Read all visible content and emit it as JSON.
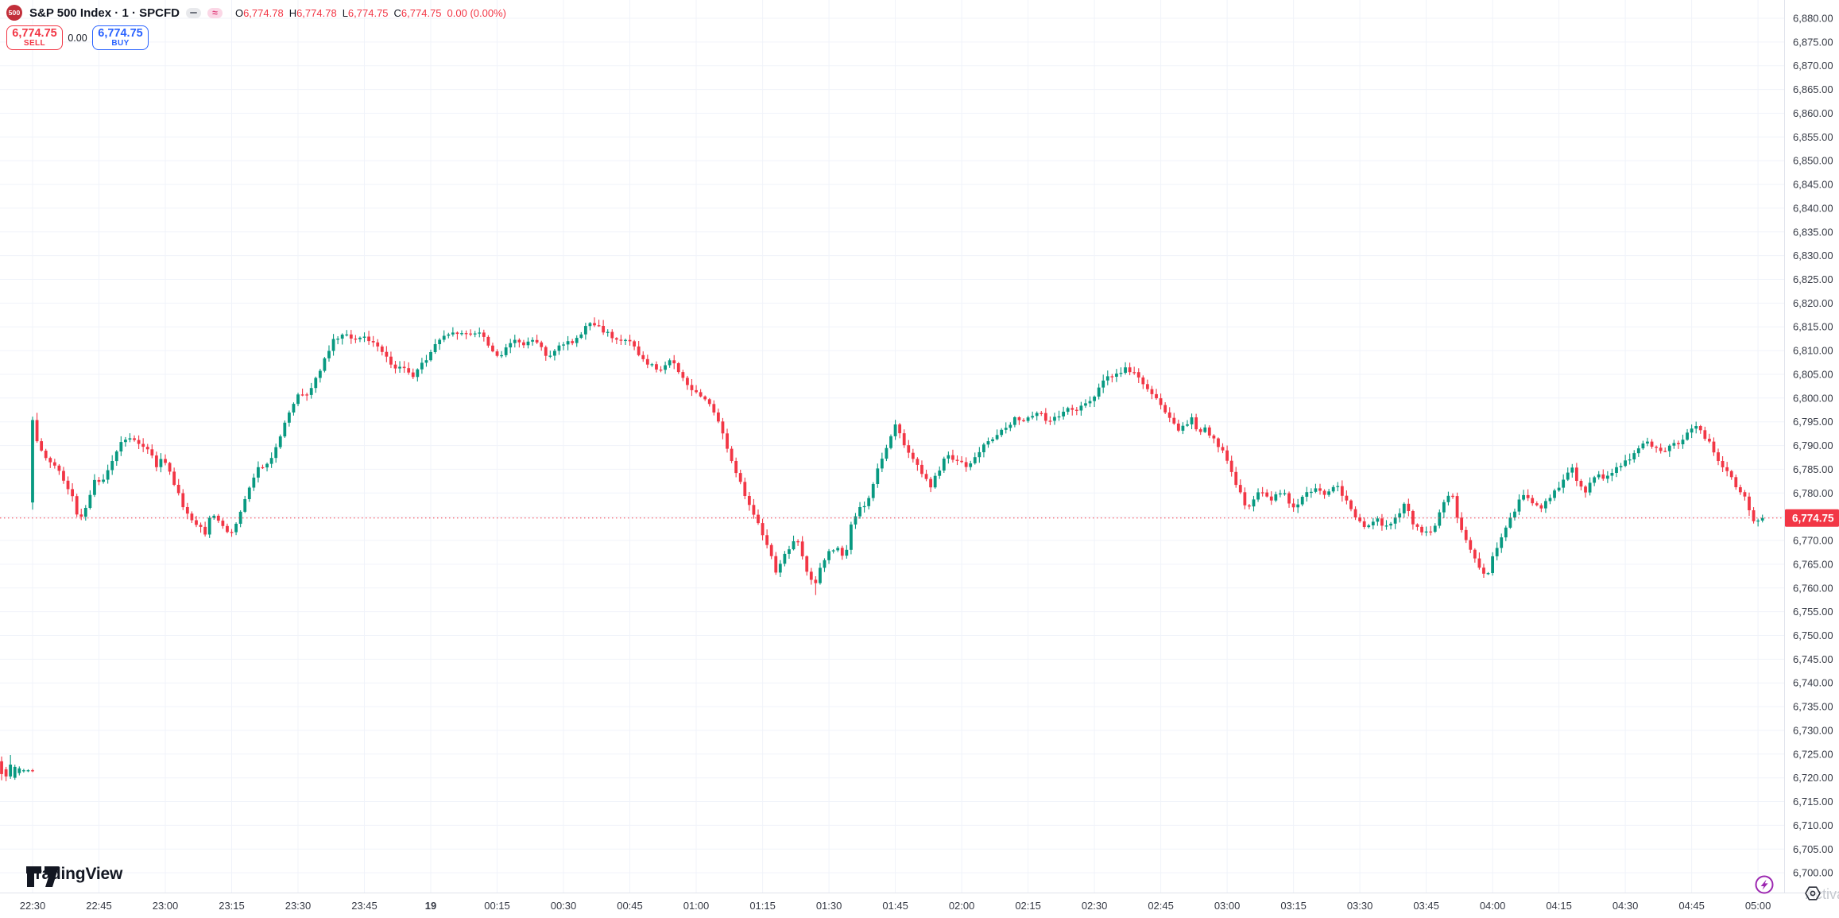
{
  "header": {
    "symbol_badge": "500",
    "title": "S&P 500 Index · 1 · SPCFD",
    "wave_symbol": "≈",
    "ohlc": {
      "open_label": "O",
      "open": "6,774.78",
      "high_label": "H",
      "high": "6,774.78",
      "low_label": "L",
      "low": "6,774.75",
      "close_label": "C",
      "close": "6,774.75",
      "change": "0.00",
      "change_pct": "(0.00%)"
    },
    "trade_panel": {
      "sell_price": "6,774.75",
      "sell_label": "SELL",
      "spread": "0.00",
      "buy_price": "6,774.75",
      "buy_label": "BUY"
    }
  },
  "watermark": {
    "logo_text": "TradingView"
  },
  "corner": {
    "clipped_text": "Activa"
  },
  "last_price": {
    "value": 6774.75,
    "label": "6,774.75"
  },
  "price_scale": {
    "min": 6700,
    "max": 6880,
    "step": 5
  },
  "time_scale": {
    "labels": [
      "22:30",
      "22:45",
      "23:00",
      "23:15",
      "23:30",
      "23:45",
      "19",
      "00:15",
      "00:30",
      "00:45",
      "01:00",
      "01:15",
      "01:30",
      "01:45",
      "02:00",
      "02:15",
      "02:30",
      "02:45",
      "03:00",
      "03:15",
      "03:30",
      "03:45",
      "04:00",
      "04:15",
      "04:30",
      "04:45",
      "05:00"
    ],
    "bold_label": "19"
  },
  "colors": {
    "up": "#089981",
    "down": "#f23645",
    "grid": "#f0f3fa",
    "axis_border": "#e0e3eb",
    "axis_text": "#363a45",
    "text": "#131722",
    "buy_blue": "#2962ff",
    "badge_red": "#c22f3a",
    "lightning_purple": "#9c27b0",
    "watermark_grey": "#c6c9cf"
  },
  "chart_data": {
    "type": "candlestick",
    "interval_minutes": 1,
    "session_start": "22:30",
    "session_end": "05:02",
    "session_open": 6778,
    "session_high": 6817,
    "session_low": 6758.5,
    "session_close": 6774.75,
    "current_price_line": 6774.75,
    "waypoints": [
      [
        0,
        6778
      ],
      [
        1,
        6795
      ],
      [
        2,
        6791
      ],
      [
        4,
        6787
      ],
      [
        6,
        6786
      ],
      [
        8,
        6783
      ],
      [
        10,
        6779
      ],
      [
        11.5,
        6773.5
      ],
      [
        13,
        6777
      ],
      [
        15,
        6783
      ],
      [
        16.5,
        6782
      ],
      [
        18,
        6785
      ],
      [
        20,
        6789
      ],
      [
        21.5,
        6791.5
      ],
      [
        23.5,
        6792
      ],
      [
        25,
        6790.5
      ],
      [
        27,
        6789.5
      ],
      [
        29,
        6785.5
      ],
      [
        30.5,
        6787.5
      ],
      [
        33,
        6782
      ],
      [
        35,
        6777.5
      ],
      [
        36.5,
        6775
      ],
      [
        38,
        6773.5
      ],
      [
        40,
        6771.5
      ],
      [
        41.5,
        6776
      ],
      [
        43,
        6774.5
      ],
      [
        45,
        6771.5
      ],
      [
        46.5,
        6772.5
      ],
      [
        48,
        6776.5
      ],
      [
        50,
        6781
      ],
      [
        52,
        6785.5
      ],
      [
        54,
        6786
      ],
      [
        56,
        6789.5
      ],
      [
        58,
        6794.5
      ],
      [
        60,
        6799
      ],
      [
        61.5,
        6801.5
      ],
      [
        63,
        6800.5
      ],
      [
        64.5,
        6803.5
      ],
      [
        66,
        6806
      ],
      [
        67.5,
        6809
      ],
      [
        69,
        6812
      ],
      [
        71,
        6813.5
      ],
      [
        73,
        6812.5
      ],
      [
        75,
        6813
      ],
      [
        77,
        6812
      ],
      [
        79,
        6810.5
      ],
      [
        81,
        6808.5
      ],
      [
        83,
        6806.5
      ],
      [
        85,
        6806
      ],
      [
        87,
        6804.5
      ],
      [
        88.5,
        6806.5
      ],
      [
        90,
        6808
      ],
      [
        92,
        6811
      ],
      [
        94,
        6813
      ],
      [
        96,
        6814
      ],
      [
        98,
        6813.5
      ],
      [
        100,
        6813
      ],
      [
        102,
        6814
      ],
      [
        103.5,
        6812
      ],
      [
        105,
        6809.5
      ],
      [
        106.5,
        6808
      ],
      [
        108,
        6810.5
      ],
      [
        110,
        6812.5
      ],
      [
        112,
        6811.5
      ],
      [
        114,
        6812.5
      ],
      [
        116,
        6810.5
      ],
      [
        117.5,
        6808
      ],
      [
        119,
        6810
      ],
      [
        121,
        6811.5
      ],
      [
        123,
        6812
      ],
      [
        125,
        6813.5
      ],
      [
        127,
        6816
      ],
      [
        128.5,
        6815.5
      ],
      [
        130,
        6814
      ],
      [
        132,
        6813
      ],
      [
        134,
        6812.5
      ],
      [
        136,
        6811.5
      ],
      [
        138,
        6809.5
      ],
      [
        140,
        6807.5
      ],
      [
        142,
        6806
      ],
      [
        144,
        6806.5
      ],
      [
        145.5,
        6808
      ],
      [
        147,
        6805.5
      ],
      [
        148.5,
        6803.5
      ],
      [
        150,
        6801.5
      ],
      [
        152,
        6800.8
      ],
      [
        154,
        6799
      ],
      [
        156,
        6795
      ],
      [
        157.5,
        6791
      ],
      [
        159,
        6787
      ],
      [
        161,
        6782
      ],
      [
        163,
        6777.5
      ],
      [
        164.5,
        6775
      ],
      [
        166,
        6771.5
      ],
      [
        167.5,
        6768.5
      ],
      [
        169,
        6763.5
      ],
      [
        170.5,
        6766.5
      ],
      [
        172,
        6768.5
      ],
      [
        173.5,
        6771
      ],
      [
        175,
        6766.5
      ],
      [
        176.5,
        6762.5
      ],
      [
        178,
        6760.8
      ],
      [
        179.5,
        6765.5
      ],
      [
        181,
        6767.5
      ],
      [
        183,
        6768
      ],
      [
        184.5,
        6765.5
      ],
      [
        186,
        6773.5
      ],
      [
        187.5,
        6776.5
      ],
      [
        189,
        6777
      ],
      [
        190.5,
        6780
      ],
      [
        192,
        6785.5
      ],
      [
        193.5,
        6788.5
      ],
      [
        194.5,
        6791
      ],
      [
        196,
        6794.8
      ],
      [
        198,
        6790
      ],
      [
        199.5,
        6787.5
      ],
      [
        201.5,
        6785
      ],
      [
        204,
        6781.5
      ],
      [
        206,
        6785
      ],
      [
        207.5,
        6788
      ],
      [
        209.5,
        6786.5
      ],
      [
        211.5,
        6786
      ],
      [
        212.5,
        6785
      ],
      [
        214.5,
        6788.5
      ],
      [
        216.5,
        6790.5
      ],
      [
        219,
        6792.5
      ],
      [
        221,
        6793.5
      ],
      [
        223,
        6796
      ],
      [
        225.5,
        6795
      ],
      [
        227,
        6796.5
      ],
      [
        228.5,
        6797.5
      ],
      [
        230,
        6795
      ],
      [
        231.5,
        6796
      ],
      [
        233,
        6796.5
      ],
      [
        234.5,
        6798
      ],
      [
        236,
        6797.5
      ],
      [
        237.5,
        6798
      ],
      [
        239,
        6798.5
      ],
      [
        240.5,
        6800
      ],
      [
        242,
        6802
      ],
      [
        243.5,
        6804
      ],
      [
        245,
        6804.5
      ],
      [
        246.5,
        6805
      ],
      [
        248,
        6806
      ],
      [
        249.5,
        6805.5
      ],
      [
        251,
        6804
      ],
      [
        252.5,
        6802.5
      ],
      [
        254,
        6801
      ],
      [
        255.5,
        6799.5
      ],
      [
        257,
        6797
      ],
      [
        258.5,
        6794.8
      ],
      [
        260,
        6793.5
      ],
      [
        261.5,
        6794.5
      ],
      [
        263,
        6795.5
      ],
      [
        264.5,
        6792.5
      ],
      [
        266,
        6793.5
      ],
      [
        267.5,
        6792
      ],
      [
        269,
        6789.5
      ],
      [
        270.5,
        6788
      ],
      [
        272,
        6784.5
      ],
      [
        273.5,
        6781
      ],
      [
        275,
        6777.5
      ],
      [
        276.5,
        6777
      ],
      [
        278,
        6780.5
      ],
      [
        279.5,
        6780
      ],
      [
        281,
        6778.5
      ],
      [
        282.5,
        6780
      ],
      [
        284,
        6779.5
      ],
      [
        285.5,
        6777
      ],
      [
        287,
        6778
      ],
      [
        288.5,
        6779.5
      ],
      [
        290,
        6780.5
      ],
      [
        291.5,
        6781
      ],
      [
        293,
        6779.5
      ],
      [
        294.5,
        6780.5
      ],
      [
        296,
        6781.5
      ],
      [
        297.5,
        6779
      ],
      [
        299,
        6776.5
      ],
      [
        300.5,
        6774
      ],
      [
        302,
        6773
      ],
      [
        303.5,
        6773.5
      ],
      [
        305,
        6774.5
      ],
      [
        306.5,
        6773
      ],
      [
        308,
        6773.5
      ],
      [
        309.5,
        6775
      ],
      [
        310.8,
        6777.8
      ],
      [
        312,
        6776
      ],
      [
        313,
        6773.5
      ],
      [
        314.5,
        6772.5
      ],
      [
        316,
        6771.5
      ],
      [
        317.5,
        6772
      ],
      [
        319,
        6775.5
      ],
      [
        320.5,
        6779
      ],
      [
        321.7,
        6780.5
      ],
      [
        322.7,
        6776
      ],
      [
        324,
        6772.5
      ],
      [
        325.5,
        6769.5
      ],
      [
        327,
        6766.5
      ],
      [
        328.5,
        6763.5
      ],
      [
        330,
        6762.8
      ],
      [
        331,
        6767
      ],
      [
        332.5,
        6769.5
      ],
      [
        334,
        6772.5
      ],
      [
        335.5,
        6775.5
      ],
      [
        337,
        6778.5
      ],
      [
        338.5,
        6779.8
      ],
      [
        340,
        6777.5
      ],
      [
        341.5,
        6776.8
      ],
      [
        343,
        6778
      ],
      [
        344.5,
        6779.5
      ],
      [
        346,
        6781.5
      ],
      [
        347.5,
        6783.5
      ],
      [
        349,
        6785
      ],
      [
        350.5,
        6781.5
      ],
      [
        352,
        6780.2
      ],
      [
        353.5,
        6782.5
      ],
      [
        355,
        6784
      ],
      [
        356.5,
        6783.2
      ],
      [
        358,
        6784.5
      ],
      [
        359.5,
        6786
      ],
      [
        361,
        6786.5
      ],
      [
        362.5,
        6787.5
      ],
      [
        364,
        6789.5
      ],
      [
        365.5,
        6791.5
      ],
      [
        367,
        6790
      ],
      [
        368.5,
        6789
      ],
      [
        370,
        6788.8
      ],
      [
        371.5,
        6790
      ],
      [
        373,
        6790.5
      ],
      [
        374.5,
        6791.5
      ],
      [
        376,
        6794
      ],
      [
        377.5,
        6794.3
      ],
      [
        379,
        6791.5
      ],
      [
        380.5,
        6790
      ],
      [
        382,
        6787
      ],
      [
        383.5,
        6785
      ],
      [
        385,
        6783
      ],
      [
        386.5,
        6781
      ],
      [
        388,
        6779.5
      ],
      [
        389.5,
        6774.8
      ],
      [
        390.7,
        6773.8
      ],
      [
        391.5,
        6774.5
      ],
      [
        392,
        6774.75
      ]
    ],
    "wick_overrides": [
      {
        "minute": 127,
        "high": 6817
      },
      {
        "minute": 177,
        "low": 6758.5
      },
      {
        "minute": 1,
        "high": 6796.9
      },
      {
        "minute": 0,
        "low": 6776.5
      }
    ],
    "pre_session_candles": [
      {
        "t": -7,
        "o": 6723.5,
        "h": 6724.5,
        "l": 6719.5,
        "c": 6720.8
      },
      {
        "t": -6,
        "o": 6721.8,
        "h": 6722.3,
        "l": 6719.3,
        "c": 6720.3
      },
      {
        "t": -5,
        "o": 6720.3,
        "h": 6724.8,
        "l": 6719.8,
        "c": 6722.8
      },
      {
        "t": -4,
        "o": 6720.0,
        "h": 6722.8,
        "l": 6719.6,
        "c": 6722.3
      },
      {
        "t": -3,
        "o": 6721.0,
        "h": 6722.4,
        "l": 6720.5,
        "c": 6722.0
      },
      {
        "t": -2,
        "o": 6721.4,
        "h": 6721.9,
        "l": 6721.1,
        "c": 6721.6
      },
      {
        "t": -1,
        "o": 6721.4,
        "h": 6721.8,
        "l": 6721.2,
        "c": 6721.6
      },
      {
        "t": 0,
        "o": 6721.6,
        "h": 6721.9,
        "l": 6721.2,
        "c": 6721.4
      }
    ]
  }
}
